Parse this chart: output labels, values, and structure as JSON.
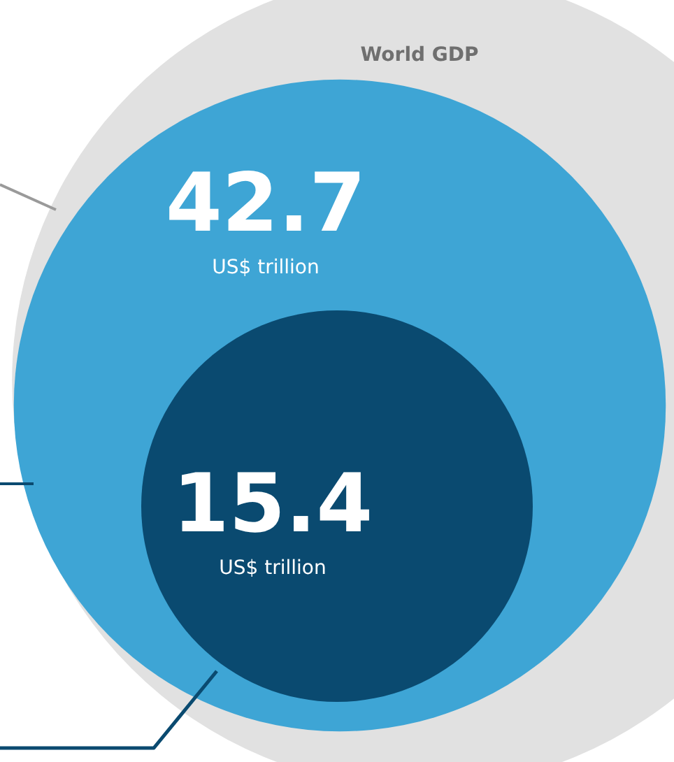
{
  "chart_data": {
    "type": "other",
    "categories": [
      "World GDP",
      null,
      null
    ],
    "values": [
      null,
      42.7,
      15.4
    ],
    "colors": [
      "#e1e1e1",
      "#3ea5d5",
      "#0a4a70"
    ],
    "data_labels": true,
    "annotations": [
      "US$ trillion",
      "US$ trillion"
    ]
  }
}
